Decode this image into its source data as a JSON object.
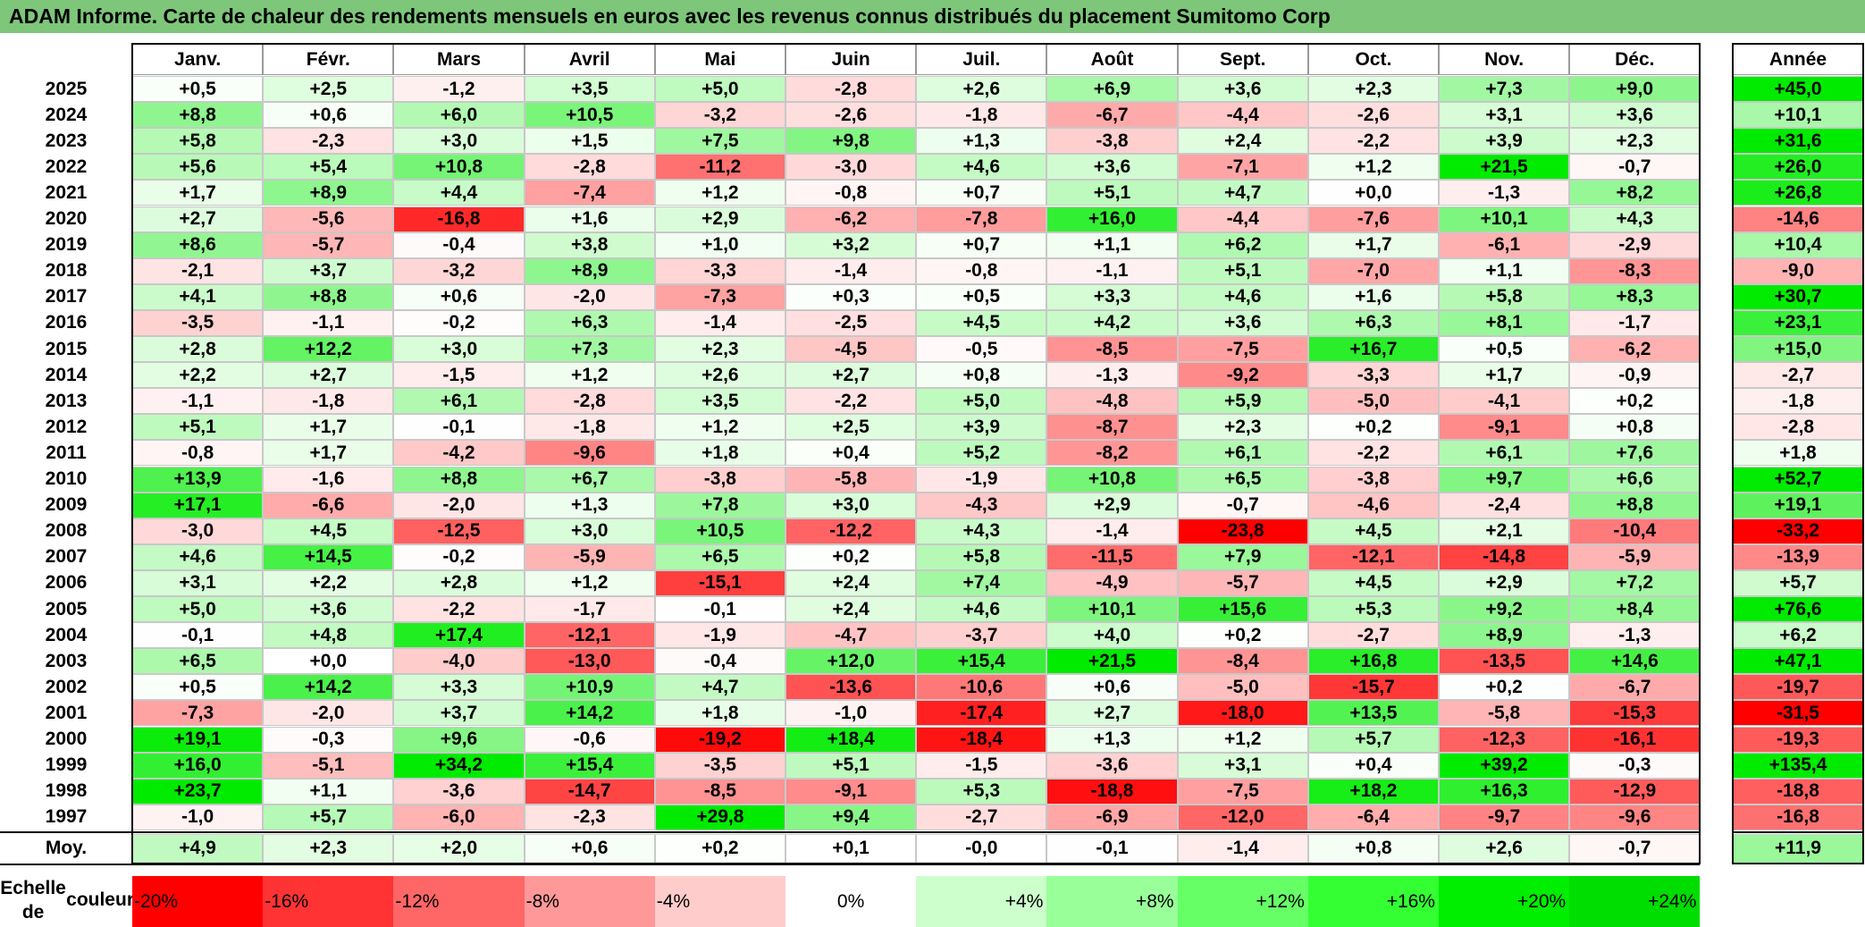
{
  "title": "ADAM Informe. Carte de chaleur des rendements mensuels en euros avec les revenus connus distribués du placement Sumitomo Corp",
  "chart_data": {
    "type": "heatmap",
    "title": "ADAM Informe. Carte de chaleur des rendements mensuels en euros avec les revenus connus distribués du placement Sumitomo Corp",
    "columns": [
      "Janv.",
      "Févr.",
      "Mars",
      "Avril",
      "Mai",
      "Juin",
      "Juil.",
      "Août",
      "Sept.",
      "Oct.",
      "Nov.",
      "Déc."
    ],
    "annual_label": "Année",
    "rows": [
      {
        "year": "2025",
        "values": [
          0.5,
          2.5,
          -1.2,
          3.5,
          5.0,
          -2.8,
          2.6,
          6.9,
          3.6,
          2.3,
          7.3,
          9.0
        ],
        "annual": 45.0
      },
      {
        "year": "2024",
        "values": [
          8.8,
          0.6,
          6.0,
          10.5,
          -3.2,
          -2.6,
          -1.8,
          -6.7,
          -4.4,
          -2.6,
          3.1,
          3.6
        ],
        "annual": 10.1
      },
      {
        "year": "2023",
        "values": [
          5.8,
          -2.3,
          3.0,
          1.5,
          7.5,
          9.8,
          1.3,
          -3.8,
          2.4,
          -2.2,
          3.9,
          2.3
        ],
        "annual": 31.6
      },
      {
        "year": "2022",
        "values": [
          5.6,
          5.4,
          10.8,
          -2.8,
          -11.2,
          -3.0,
          4.6,
          3.6,
          -7.1,
          1.2,
          21.5,
          -0.7
        ],
        "annual": 26.0
      },
      {
        "year": "2021",
        "values": [
          1.7,
          8.9,
          4.4,
          -7.4,
          1.2,
          -0.8,
          0.7,
          5.1,
          4.7,
          0.0,
          -1.3,
          8.2
        ],
        "annual": 26.8
      },
      {
        "year": "2020",
        "values": [
          2.7,
          -5.6,
          -16.8,
          1.6,
          2.9,
          -6.2,
          -7.8,
          16.0,
          -4.4,
          -7.6,
          10.1,
          4.3
        ],
        "annual": -14.6
      },
      {
        "year": "2019",
        "values": [
          8.6,
          -5.7,
          -0.4,
          3.8,
          1.0,
          3.2,
          0.7,
          1.1,
          6.2,
          1.7,
          -6.1,
          -2.9
        ],
        "annual": 10.4
      },
      {
        "year": "2018",
        "values": [
          -2.1,
          3.7,
          -3.2,
          8.9,
          -3.3,
          -1.4,
          -0.8,
          -1.1,
          5.1,
          -7.0,
          1.1,
          -8.3
        ],
        "annual": -9.0
      },
      {
        "year": "2017",
        "values": [
          4.1,
          8.8,
          0.6,
          -2.0,
          -7.3,
          0.3,
          0.5,
          3.3,
          4.6,
          1.6,
          5.8,
          8.3
        ],
        "annual": 30.7
      },
      {
        "year": "2016",
        "values": [
          -3.5,
          -1.1,
          -0.2,
          6.3,
          -1.4,
          -2.5,
          4.5,
          4.2,
          3.6,
          6.3,
          8.1,
          -1.7
        ],
        "annual": 23.1
      },
      {
        "year": "2015",
        "values": [
          2.8,
          12.2,
          3.0,
          7.3,
          2.3,
          -4.5,
          -0.5,
          -8.5,
          -7.5,
          16.7,
          0.5,
          -6.2
        ],
        "annual": 15.0
      },
      {
        "year": "2014",
        "values": [
          2.2,
          2.7,
          -1.5,
          1.2,
          2.6,
          2.7,
          0.8,
          -1.3,
          -9.2,
          -3.3,
          1.7,
          -0.9
        ],
        "annual": -2.7
      },
      {
        "year": "2013",
        "values": [
          -1.1,
          -1.8,
          6.1,
          -2.8,
          3.5,
          -2.2,
          5.0,
          -4.8,
          5.9,
          -5.0,
          -4.1,
          0.2
        ],
        "annual": -1.8
      },
      {
        "year": "2012",
        "values": [
          5.1,
          1.7,
          -0.1,
          -1.8,
          1.2,
          2.5,
          3.9,
          -8.7,
          2.3,
          0.2,
          -9.1,
          0.8
        ],
        "annual": -2.8
      },
      {
        "year": "2011",
        "values": [
          -0.8,
          1.7,
          -4.2,
          -9.6,
          1.8,
          0.4,
          5.2,
          -8.2,
          6.1,
          -2.2,
          6.1,
          7.6
        ],
        "annual": 1.8
      },
      {
        "year": "2010",
        "values": [
          13.9,
          -1.6,
          8.8,
          6.7,
          -3.8,
          -5.8,
          -1.9,
          10.8,
          6.5,
          -3.8,
          9.7,
          6.6
        ],
        "annual": 52.7
      },
      {
        "year": "2009",
        "values": [
          17.1,
          -6.6,
          -2.0,
          1.3,
          7.8,
          3.0,
          -4.3,
          2.9,
          -0.7,
          -4.6,
          -2.4,
          8.8
        ],
        "annual": 19.1
      },
      {
        "year": "2008",
        "values": [
          -3.0,
          4.5,
          -12.5,
          3.0,
          10.5,
          -12.2,
          4.3,
          -1.4,
          -23.8,
          4.5,
          2.1,
          -10.4
        ],
        "annual": -33.2
      },
      {
        "year": "2007",
        "values": [
          4.6,
          14.5,
          -0.2,
          -5.9,
          6.5,
          0.2,
          5.8,
          -11.5,
          7.9,
          -12.1,
          -14.8,
          -5.9
        ],
        "annual": -13.9
      },
      {
        "year": "2006",
        "values": [
          3.1,
          2.2,
          2.8,
          1.2,
          -15.1,
          2.4,
          7.4,
          -4.9,
          -5.7,
          4.5,
          2.9,
          7.2
        ],
        "annual": 5.7
      },
      {
        "year": "2005",
        "values": [
          5.0,
          3.6,
          -2.2,
          -1.7,
          -0.1,
          2.4,
          4.6,
          10.1,
          15.6,
          5.3,
          9.2,
          8.4
        ],
        "annual": 76.6
      },
      {
        "year": "2004",
        "values": [
          -0.1,
          4.8,
          17.4,
          -12.1,
          -1.9,
          -4.7,
          -3.7,
          4.0,
          0.2,
          -2.7,
          8.9,
          -1.3
        ],
        "annual": 6.2
      },
      {
        "year": "2003",
        "values": [
          6.5,
          0.0,
          -4.0,
          -13.0,
          -0.4,
          12.0,
          15.4,
          21.5,
          -8.4,
          16.8,
          -13.5,
          14.6
        ],
        "annual": 47.1
      },
      {
        "year": "2002",
        "values": [
          0.5,
          14.2,
          3.3,
          10.9,
          4.7,
          -13.6,
          -10.6,
          0.6,
          -5.0,
          -15.7,
          0.2,
          -6.7
        ],
        "annual": -19.7
      },
      {
        "year": "2001",
        "values": [
          -7.3,
          -2.0,
          3.7,
          14.2,
          1.8,
          -1.0,
          -17.4,
          2.7,
          -18.0,
          13.5,
          -5.8,
          -15.3
        ],
        "annual": -31.5
      },
      {
        "year": "2000",
        "values": [
          19.1,
          -0.3,
          9.6,
          -0.6,
          -19.2,
          18.4,
          -18.4,
          1.3,
          1.2,
          5.7,
          -12.3,
          -16.1
        ],
        "annual": -19.3
      },
      {
        "year": "1999",
        "values": [
          16.0,
          -5.1,
          34.2,
          15.4,
          -3.5,
          5.1,
          -1.5,
          -3.6,
          3.1,
          0.4,
          39.2,
          -0.3
        ],
        "annual": 135.4
      },
      {
        "year": "1998",
        "values": [
          23.7,
          1.1,
          -3.6,
          -14.7,
          -8.5,
          -9.1,
          5.3,
          -18.8,
          -7.5,
          18.2,
          16.3,
          -12.9
        ],
        "annual": -18.8
      },
      {
        "year": "1997",
        "values": [
          -1.0,
          5.7,
          -6.0,
          -2.3,
          29.8,
          9.4,
          -2.7,
          -6.9,
          -12.0,
          -6.4,
          -9.7,
          -9.6
        ],
        "annual": -16.8
      }
    ],
    "average": {
      "label": "Moy.",
      "values": [
        "+4,9",
        "+2,3",
        "+2,0",
        "+0,6",
        "+0,2",
        "+0,1",
        "-0,0",
        "-0,1",
        "-1,4",
        "+0,8",
        "+2,6",
        "-0,7"
      ],
      "annual": "+11,9"
    },
    "color_scale": {
      "label_line1": "Echelle de",
      "label_line2": "couleur",
      "stops": [
        {
          "label": "-20%",
          "value": -20,
          "color": "#ff0000"
        },
        {
          "label": "-16%",
          "value": -16,
          "color": "#ff3333"
        },
        {
          "label": "-12%",
          "value": -12,
          "color": "#ff6666"
        },
        {
          "label": "-8%",
          "value": -8,
          "color": "#ff9999"
        },
        {
          "label": "-4%",
          "value": -4,
          "color": "#ffcccc"
        },
        {
          "label": "0%",
          "value": 0,
          "color": "#ffffff"
        },
        {
          "label": "+4%",
          "value": 4,
          "color": "#ccffcc"
        },
        {
          "label": "+8%",
          "value": 8,
          "color": "#99ff99"
        },
        {
          "label": "+12%",
          "value": 12,
          "color": "#66ff66"
        },
        {
          "label": "+16%",
          "value": 16,
          "color": "#33ff33"
        },
        {
          "label": "+20%",
          "value": 20,
          "color": "#00ee00"
        },
        {
          "label": "+24%",
          "value": 24,
          "color": "#00dd00"
        }
      ]
    }
  },
  "colors": {
    "title_bar": "#7dc67a",
    "negative_max": "#ff0000",
    "positive_max": "#00dd00",
    "neutral": "#ffffff"
  }
}
